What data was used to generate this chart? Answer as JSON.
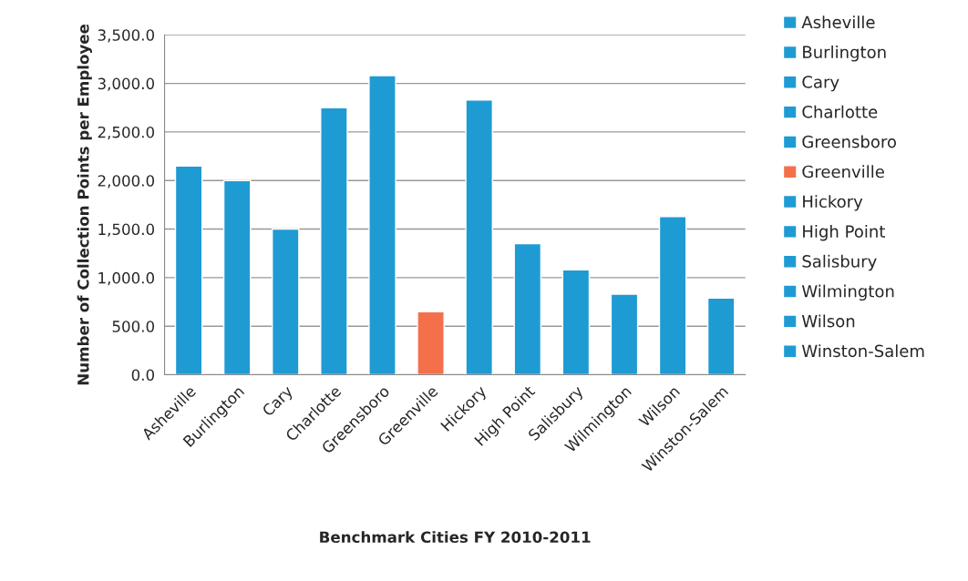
{
  "chart_data": {
    "type": "bar",
    "xlabel": "Benchmark Cities FY 2010-2011",
    "ylabel": "Number of Collection Points per Employee",
    "categories": [
      "Asheville",
      "Burlington",
      "Cary",
      "Charlotte",
      "Greensboro",
      "Greenville",
      "Hickory",
      "High Point",
      "Salisbury",
      "Wilmington",
      "Wilson",
      "Winston-Salem"
    ],
    "series": [
      {
        "name": "Asheville",
        "color": "#1f9bd4",
        "values": [
          2150,
          null,
          null,
          null,
          null,
          null,
          null,
          null,
          null,
          null,
          null,
          null
        ]
      },
      {
        "name": "Burlington",
        "color": "#1f9bd4",
        "values": [
          null,
          2000,
          null,
          null,
          null,
          null,
          null,
          null,
          null,
          null,
          null,
          null
        ]
      },
      {
        "name": "Cary",
        "color": "#1f9bd4",
        "values": [
          null,
          null,
          1500,
          null,
          null,
          null,
          null,
          null,
          null,
          null,
          null,
          null
        ]
      },
      {
        "name": "Charlotte",
        "color": "#1f9bd4",
        "values": [
          null,
          null,
          null,
          2750,
          null,
          null,
          null,
          null,
          null,
          null,
          null,
          null
        ]
      },
      {
        "name": "Greensboro",
        "color": "#1f9bd4",
        "values": [
          null,
          null,
          null,
          null,
          3080,
          null,
          null,
          null,
          null,
          null,
          null,
          null
        ]
      },
      {
        "name": "Greenville",
        "color": "#f4704b",
        "values": [
          null,
          null,
          null,
          null,
          null,
          650,
          null,
          null,
          null,
          null,
          null,
          null
        ]
      },
      {
        "name": "Hickory",
        "color": "#1f9bd4",
        "values": [
          null,
          null,
          null,
          null,
          null,
          null,
          2830,
          null,
          null,
          null,
          null,
          null
        ]
      },
      {
        "name": "High Point",
        "color": "#1f9bd4",
        "values": [
          null,
          null,
          null,
          null,
          null,
          null,
          null,
          1350,
          null,
          null,
          null,
          null
        ]
      },
      {
        "name": "Salisbury",
        "color": "#1f9bd4",
        "values": [
          null,
          null,
          null,
          null,
          null,
          null,
          null,
          null,
          1080,
          null,
          null,
          null
        ]
      },
      {
        "name": "Wilmington",
        "color": "#1f9bd4",
        "values": [
          null,
          null,
          null,
          null,
          null,
          null,
          null,
          null,
          null,
          830,
          null,
          null
        ]
      },
      {
        "name": "Wilson",
        "color": "#1f9bd4",
        "values": [
          null,
          null,
          null,
          null,
          null,
          null,
          null,
          null,
          null,
          null,
          1630,
          null
        ]
      },
      {
        "name": "Winston-Salem",
        "color": "#1f9bd4",
        "values": [
          null,
          null,
          null,
          null,
          null,
          null,
          null,
          null,
          null,
          null,
          null,
          790
        ]
      }
    ],
    "ylim": [
      0,
      3500
    ],
    "yticks": [
      {
        "value": 0,
        "label": "0.0"
      },
      {
        "value": 500,
        "label": "500.0"
      },
      {
        "value": 1000,
        "label": "1,000.0"
      },
      {
        "value": 1500,
        "label": "1,500.0"
      },
      {
        "value": 2000,
        "label": "2,000.0"
      },
      {
        "value": 2500,
        "label": "2,500.0"
      },
      {
        "value": 3000,
        "label": "3,000.0"
      },
      {
        "value": 3500,
        "label": "3,500.0"
      }
    ],
    "grid": "y",
    "legend": "right"
  }
}
